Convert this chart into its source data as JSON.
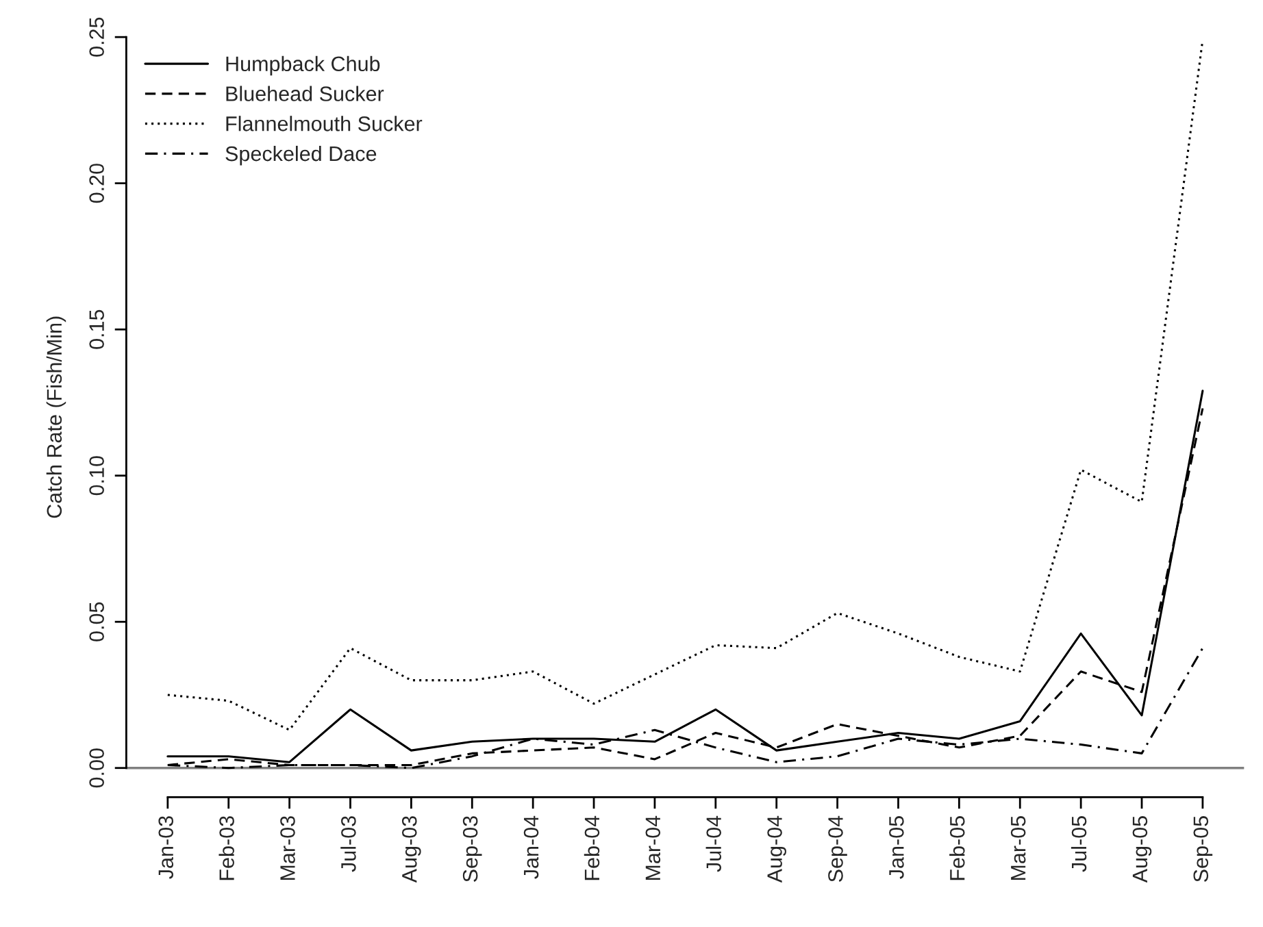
{
  "chart_data": {
    "type": "line",
    "ylabel": "Catch Rate (Fish/Min)",
    "categories": [
      "Jan-03",
      "Feb-03",
      "Mar-03",
      "Jul-03",
      "Aug-03",
      "Sep-03",
      "Jan-04",
      "Feb-04",
      "Mar-04",
      "Jul-04",
      "Aug-04",
      "Sep-04",
      "Jan-05",
      "Feb-05",
      "Mar-05",
      "Jul-05",
      "Aug-05",
      "Sep-05"
    ],
    "series": [
      {
        "name": "Humpback Chub",
        "color": "#000000",
        "line_style": "solid",
        "values": [
          0.004,
          0.004,
          0.002,
          0.02,
          0.006,
          0.009,
          0.01,
          0.01,
          0.009,
          0.02,
          0.006,
          0.009,
          0.012,
          0.01,
          0.016,
          0.046,
          0.018,
          0.129
        ]
      },
      {
        "name": "Bluehead Sucker",
        "color": "#000000",
        "line_style": "dashed",
        "values": [
          0.001,
          0.003,
          0.001,
          0.001,
          0.001,
          0.005,
          0.006,
          0.007,
          0.003,
          0.012,
          0.007,
          0.015,
          0.011,
          0.007,
          0.011,
          0.033,
          0.026,
          0.123
        ]
      },
      {
        "name": "Flannelmouth Sucker",
        "color": "#000000",
        "line_style": "dotted",
        "values": [
          0.025,
          0.023,
          0.013,
          0.041,
          0.03,
          0.03,
          0.033,
          0.022,
          0.032,
          0.042,
          0.041,
          0.053,
          0.046,
          0.038,
          0.033,
          0.102,
          0.091,
          0.249
        ]
      },
      {
        "name": "Speckeled Dace",
        "color": "#000000",
        "line_style": "dashdot",
        "values": [
          0.001,
          0.0,
          0.001,
          0.001,
          0.0,
          0.004,
          0.01,
          0.008,
          0.013,
          0.007,
          0.002,
          0.004,
          0.01,
          0.008,
          0.01,
          0.008,
          0.005,
          0.041
        ]
      }
    ],
    "ylim": [
      -0.01,
      0.25
    ],
    "yticks": [
      {
        "value": 0,
        "label": "0.00"
      },
      {
        "value": 0.05,
        "label": "0.05"
      },
      {
        "value": 0.1,
        "label": "0.10"
      },
      {
        "value": 0.15,
        "label": "0.15"
      },
      {
        "value": 0.2,
        "label": "0.20"
      },
      {
        "value": 0.25,
        "label": "0.25"
      }
    ],
    "ref_lines": [
      {
        "axis": "y",
        "value": 0,
        "color": "#808080",
        "line_style": "solid"
      }
    ],
    "grid": false,
    "legend": "top left",
    "marker": "none"
  }
}
